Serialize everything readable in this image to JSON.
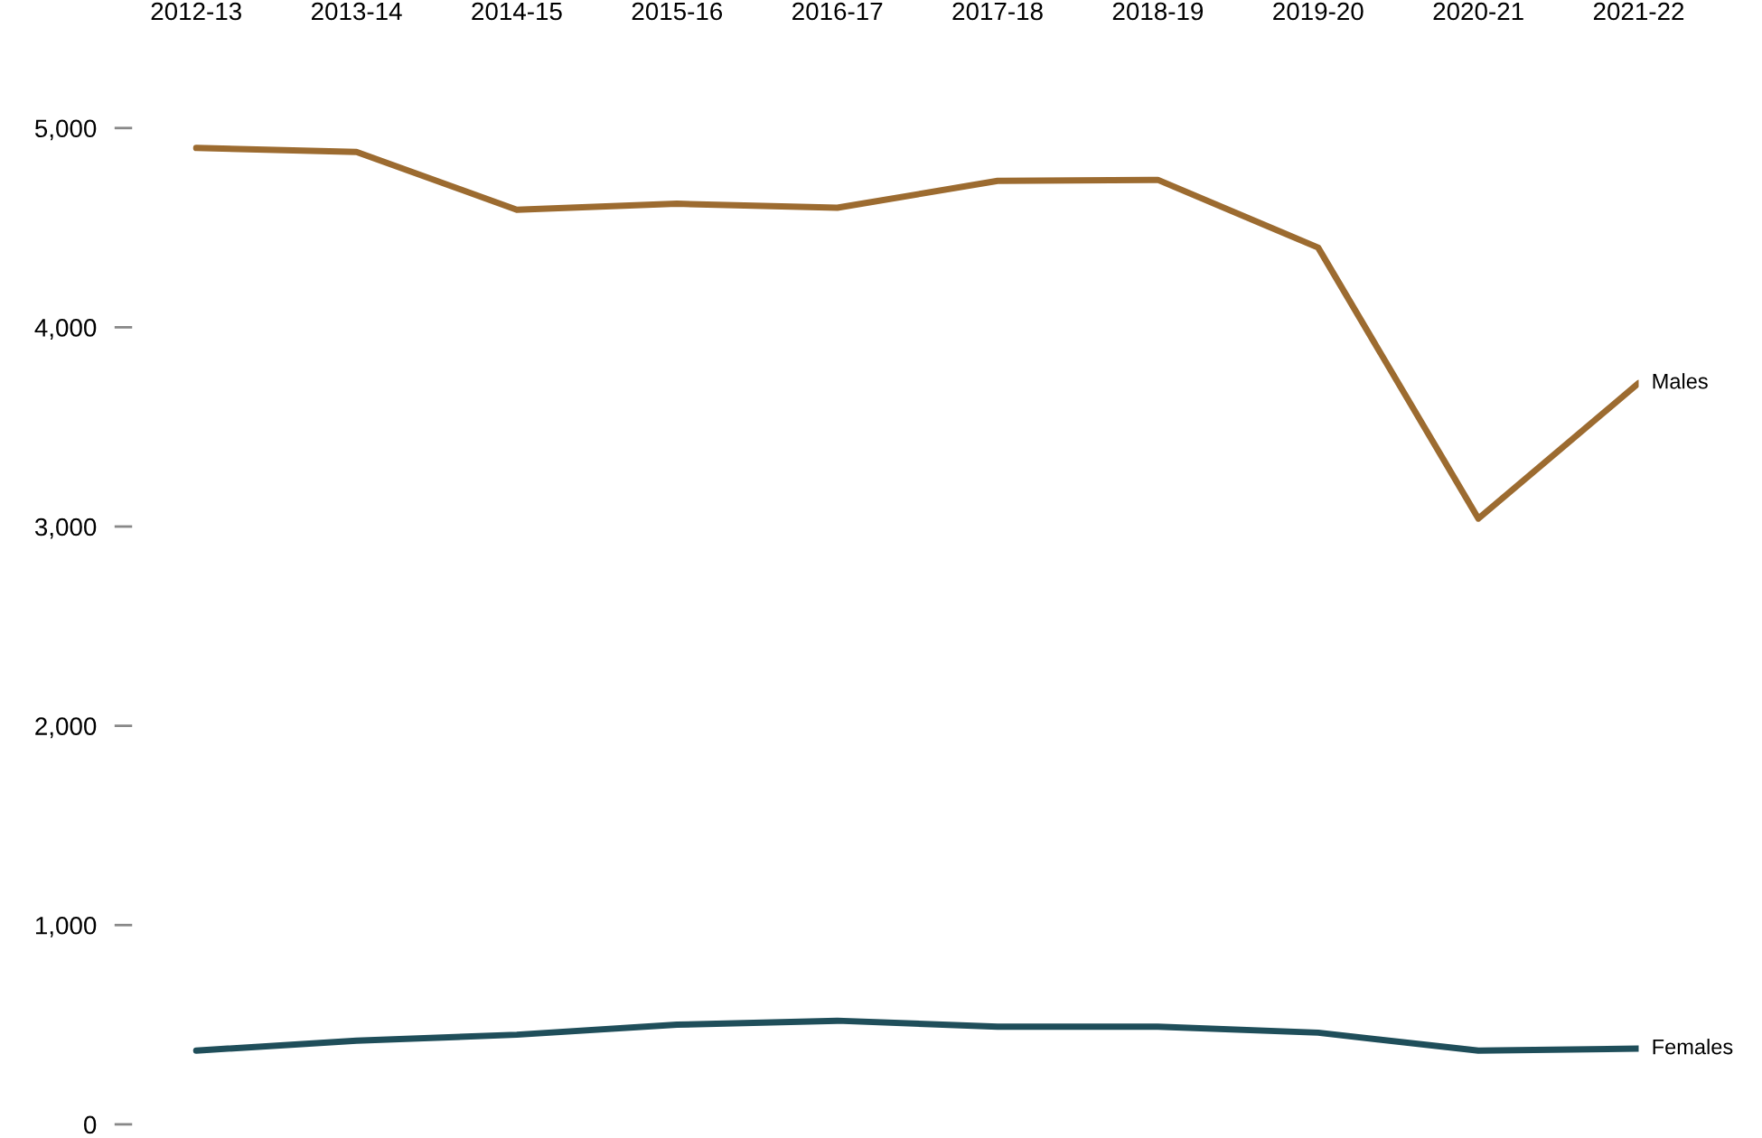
{
  "chart_data": {
    "type": "line",
    "categories": [
      "2012-13",
      "2013-14",
      "2014-15",
      "2015-16",
      "2016-17",
      "2017-18",
      "2018-19",
      "2019-20",
      "2020-21",
      "2021-22"
    ],
    "series": [
      {
        "name": "Males",
        "color": "#9c6b30",
        "values": [
          4900,
          4880,
          4590,
          4620,
          4600,
          4735,
          4740,
          4400,
          3040,
          3720
        ]
      },
      {
        "name": "Females",
        "color": "#1f4e5a",
        "values": [
          370,
          420,
          450,
          500,
          520,
          490,
          490,
          460,
          370,
          380
        ]
      }
    ],
    "ylim": [
      0,
      5000
    ],
    "yticks": [
      {
        "value": 0,
        "label": "0"
      },
      {
        "value": 1000,
        "label": "1,000"
      },
      {
        "value": 2000,
        "label": "2,000"
      },
      {
        "value": 3000,
        "label": "3,000"
      },
      {
        "value": 4000,
        "label": "4,000"
      },
      {
        "value": 5000,
        "label": "5,000"
      }
    ],
    "grid": false,
    "legend": false,
    "marker": "none",
    "line_style": "solid"
  }
}
